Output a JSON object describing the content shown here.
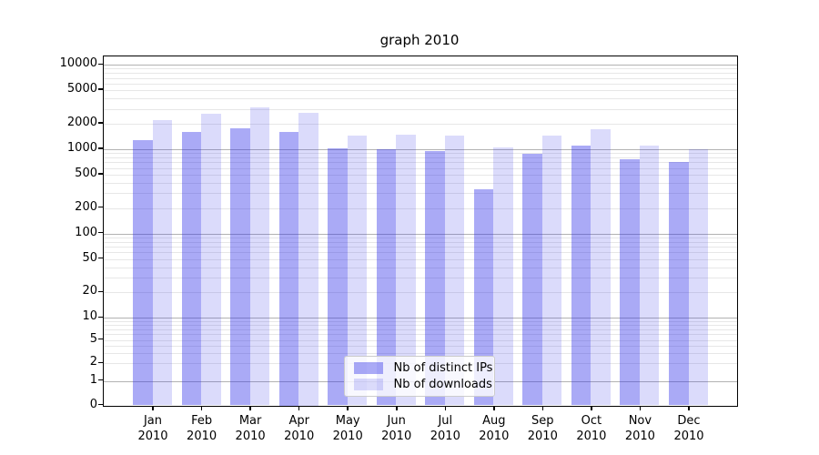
{
  "chart_data": {
    "type": "bar",
    "title": "graph 2010",
    "xlabel": "",
    "ylabel": "",
    "y_scale": "symlog",
    "ylim": [
      0,
      10000
    ],
    "grid": true,
    "legend_position": "lower center",
    "categories": [
      "Jan",
      "Feb",
      "Mar",
      "Apr",
      "May",
      "Jun",
      "Jul",
      "Aug",
      "Sep",
      "Oct",
      "Nov",
      "Dec"
    ],
    "x_year_line": "2010",
    "series": [
      {
        "name": "Nb of distinct IPs",
        "color": "rgba(43,43,233,0.40)",
        "values": [
          1290,
          1590,
          1760,
          1600,
          1020,
          1000,
          955,
          335,
          875,
          1090,
          765,
          700
        ]
      },
      {
        "name": "Nb of downloads",
        "color": "rgba(43,43,233,0.17)",
        "values": [
          2220,
          2610,
          3100,
          2730,
          1450,
          1495,
          1460,
          1055,
          1450,
          1730,
          1090,
          990
        ]
      }
    ],
    "y_tick_values": [
      10000,
      5000,
      2000,
      1000,
      500,
      200,
      100,
      50,
      20,
      10,
      5,
      2,
      1,
      0
    ],
    "y_tick_labels": [
      "10000",
      "5000",
      "2000",
      "1000",
      "500",
      "200",
      "100",
      "50",
      "20",
      "10",
      "5",
      "2",
      "1",
      "0"
    ],
    "colors": {
      "grid_major": "#b2b2b2",
      "grid_minor": "#e7e7e7",
      "axis": "#000000",
      "legend_border": "#cccccc"
    }
  }
}
